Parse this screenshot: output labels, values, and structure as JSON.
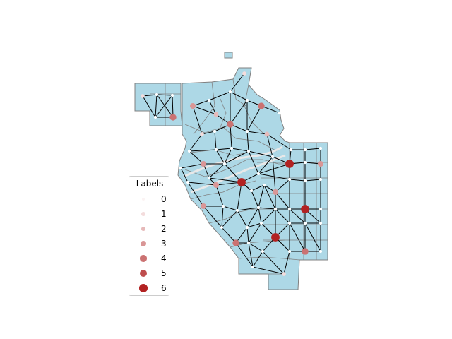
{
  "map": {
    "region_fill": "#add8e6",
    "region_stroke": "#808080",
    "edge_color": "#000000",
    "node_colors": [
      "#fbf3f3",
      "#f3dcdc",
      "#e6b9b9",
      "#d99696",
      "#cb7272",
      "#be4d4d",
      "#b22222"
    ]
  },
  "legend": {
    "title": "Labels",
    "items": [
      {
        "label": "0",
        "level": 0
      },
      {
        "label": "1",
        "level": 1
      },
      {
        "label": "2",
        "level": 2
      },
      {
        "label": "3",
        "level": 3
      },
      {
        "label": "4",
        "level": 4
      },
      {
        "label": "5",
        "level": 5
      },
      {
        "label": "6",
        "level": 6
      }
    ]
  }
}
